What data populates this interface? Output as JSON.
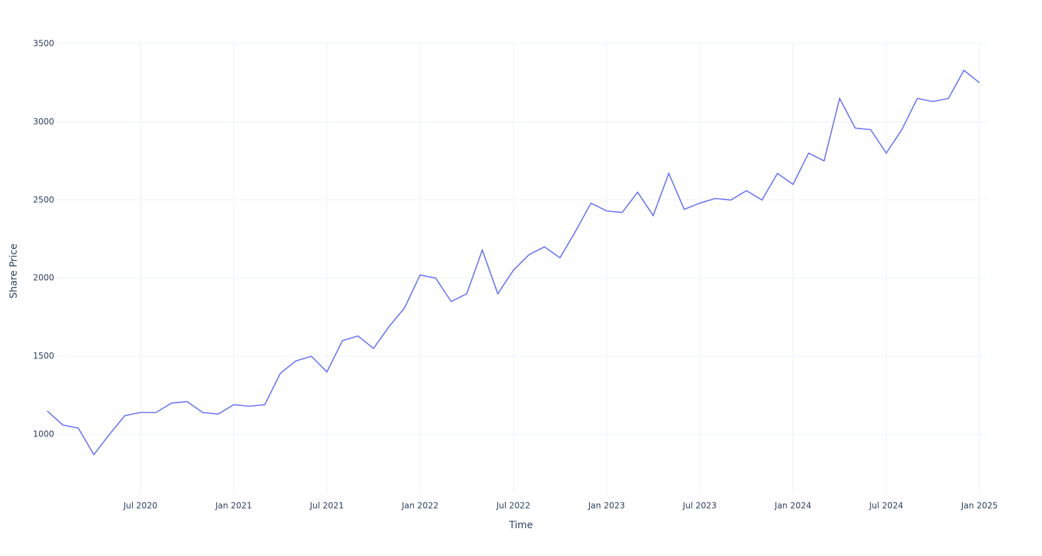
{
  "chart_data": {
    "type": "line",
    "x_label": "Time",
    "y_label": "Share Price",
    "x": [
      "2020-01",
      "2020-02",
      "2020-03",
      "2020-04",
      "2020-05",
      "2020-06",
      "2020-07",
      "2020-08",
      "2020-09",
      "2020-10",
      "2020-11",
      "2020-12",
      "2021-01",
      "2021-02",
      "2021-03",
      "2021-04",
      "2021-05",
      "2021-06",
      "2021-07",
      "2021-08",
      "2021-09",
      "2021-10",
      "2021-11",
      "2021-12",
      "2022-01",
      "2022-02",
      "2022-03",
      "2022-04",
      "2022-05",
      "2022-06",
      "2022-07",
      "2022-08",
      "2022-09",
      "2022-10",
      "2022-11",
      "2022-12",
      "2023-01",
      "2023-02",
      "2023-03",
      "2023-04",
      "2023-05",
      "2023-06",
      "2023-07",
      "2023-08",
      "2023-09",
      "2023-10",
      "2023-11",
      "2023-12",
      "2024-01",
      "2024-02",
      "2024-03",
      "2024-04",
      "2024-05",
      "2024-06",
      "2024-07",
      "2024-08",
      "2024-09",
      "2024-10",
      "2024-11",
      "2024-12",
      "2025-01"
    ],
    "series": [
      {
        "color": "#636efa",
        "values": [
          1150,
          1060,
          1040,
          870,
          1000,
          1120,
          1140,
          1140,
          1200,
          1210,
          1140,
          1130,
          1190,
          1180,
          1190,
          1390,
          1470,
          1500,
          1400,
          1600,
          1630,
          1550,
          1690,
          1810,
          2020,
          2000,
          1850,
          1900,
          2180,
          1900,
          2050,
          2150,
          2200,
          2130,
          2300,
          2480,
          2430,
          2420,
          2550,
          2400,
          2670,
          2440,
          2480,
          2510,
          2500,
          2560,
          2500,
          2670,
          2600,
          2800,
          2750,
          3150,
          2960,
          2950,
          2800,
          2950,
          3150,
          3130,
          3150,
          3330,
          3250
        ]
      }
    ],
    "xlim": [
      "2020-01",
      "2025-01"
    ],
    "xticks": [
      {
        "value": "2020-07",
        "label": "Jul 2020"
      },
      {
        "value": "2021-01",
        "label": "Jan 2021"
      },
      {
        "value": "2021-07",
        "label": "Jul 2021"
      },
      {
        "value": "2022-01",
        "label": "Jan 2022"
      },
      {
        "value": "2022-07",
        "label": "Jul 2022"
      },
      {
        "value": "2023-01",
        "label": "Jan 2023"
      },
      {
        "value": "2023-07",
        "label": "Jul 2023"
      },
      {
        "value": "2024-01",
        "label": "Jan 2024"
      },
      {
        "value": "2024-07",
        "label": "Jul 2024"
      },
      {
        "value": "2025-01",
        "label": "Jan 2025"
      }
    ],
    "ylim": [
      622,
      3513
    ],
    "yticks": [
      1000,
      1500,
      2000,
      2500,
      3000,
      3500
    ],
    "grid": true
  }
}
